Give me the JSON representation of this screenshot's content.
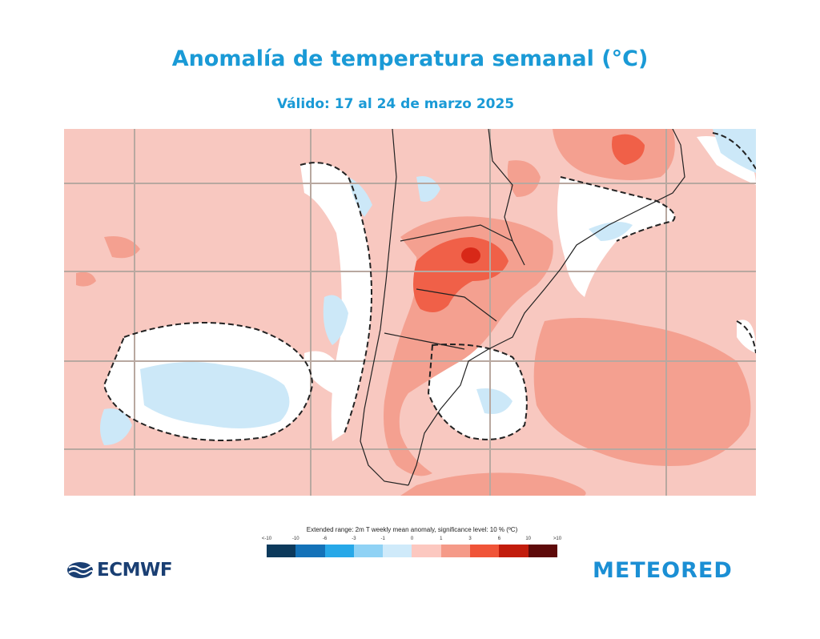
{
  "header": {
    "title": "Anomalía de temperatura semanal  (°C)",
    "subtitle": "Válido: 17 al 24 de marzo 2025"
  },
  "map": {
    "region": "South America - southern cone",
    "colors": {
      "background_anomaly": "#f8c8c0",
      "moderate_warm": "#f4a090",
      "strong_warm": "#f06048",
      "extreme_warm": "#d82818",
      "neutral": "#ffffff",
      "cool": "#cce8f8",
      "gridline": "#b8a8a0",
      "coastline": "#222222"
    }
  },
  "legend": {
    "caption": "Extended range: 2m T weekly mean anomaly, significance level: 10 % (ºC)",
    "ticks": [
      "<-10",
      "-10",
      "-6",
      "-3",
      "-1",
      "0",
      "1",
      "3",
      "6",
      "10",
      ">10"
    ],
    "colors": [
      "#0d3a5c",
      "#1472b8",
      "#27a8e8",
      "#8fd2f5",
      "#cfeafa",
      "#ffffff",
      "#fcc8c0",
      "#f59a88",
      "#f05438",
      "#c21c0c",
      "#5e0a0a"
    ]
  },
  "logos": {
    "left": "ECMWF",
    "right": "METEORED"
  }
}
